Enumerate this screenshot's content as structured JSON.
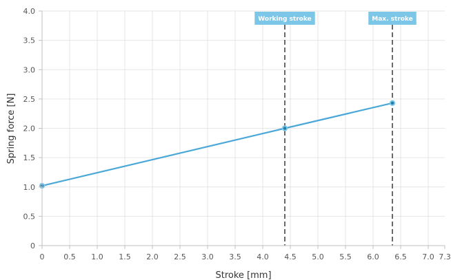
{
  "chart_data": {
    "type": "line",
    "xlabel": "Stroke [mm]",
    "ylabel": "Spring force [N]",
    "xlim": [
      0,
      7.3
    ],
    "ylim": [
      0,
      4.0
    ],
    "x_ticks": [
      "0",
      "0.5",
      "1.0",
      "1.5",
      "2.0",
      "2.5",
      "3.0",
      "3.5",
      "4.0",
      "4.5",
      "5.0",
      "5.5",
      "6.0",
      "6.5",
      "7.0",
      "7.3"
    ],
    "y_ticks": [
      "0",
      "0.5",
      "1.0",
      "1.5",
      "2.0",
      "2.5",
      "3.0",
      "3.5",
      "4.0"
    ],
    "grid": true,
    "series": [
      {
        "color": "#4aa8d8",
        "points": [
          {
            "x": 0,
            "y": 1.02
          },
          {
            "x": 4.4,
            "y": 2.0
          },
          {
            "x": 6.35,
            "y": 2.43
          }
        ]
      }
    ],
    "reference_lines": [
      {
        "x": 4.4,
        "label": "Working stroke"
      },
      {
        "x": 6.35,
        "label": "Max. stroke"
      }
    ]
  }
}
